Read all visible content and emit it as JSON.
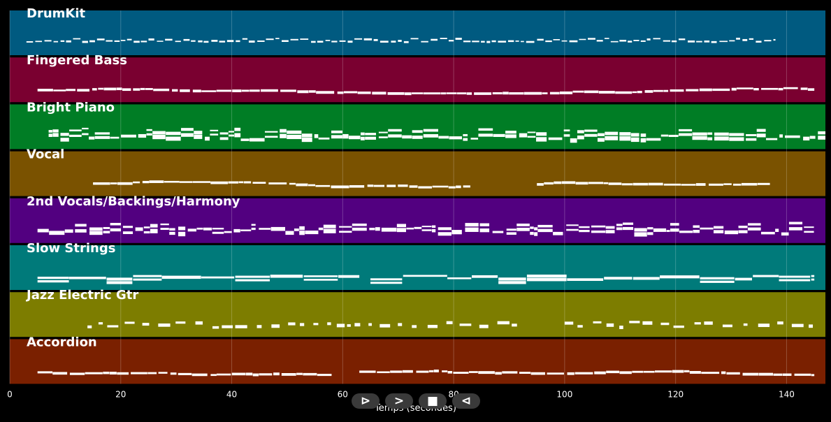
{
  "chart_data": {
    "type": "piano-roll",
    "xlabel": "Temps (secondes)",
    "xlim": [
      0,
      147
    ],
    "x_ticks": [
      0,
      20,
      40,
      60,
      80,
      100,
      120,
      140
    ],
    "grid": true,
    "tracks": [
      {
        "name": "DrumKit",
        "color": "#005a80",
        "active": [
          [
            3,
            138
          ]
        ],
        "style": "drum"
      },
      {
        "name": "Fingered Bass",
        "color": "#7a0030",
        "active": [
          [
            5,
            145
          ]
        ],
        "style": "line"
      },
      {
        "name": "Bright Piano",
        "color": "#007d25",
        "active": [
          [
            7,
            147
          ]
        ],
        "style": "chords"
      },
      {
        "name": "Vocal",
        "color": "#7a5200",
        "active": [
          [
            15,
            83
          ],
          [
            95,
            137
          ]
        ],
        "style": "line"
      },
      {
        "name": "2nd Vocals/Backings/Harmony",
        "color": "#520080",
        "active": [
          [
            5,
            145
          ]
        ],
        "style": "chords"
      },
      {
        "name": "Slow Strings",
        "color": "#007a7a",
        "active": [
          [
            5,
            63
          ],
          [
            65,
            145
          ]
        ],
        "style": "sustain"
      },
      {
        "name": "Jazz Electric Gtr",
        "color": "#7d7d00",
        "active": [
          [
            14,
            93
          ],
          [
            100,
            145
          ]
        ],
        "style": "sparse"
      },
      {
        "name": "Accordion",
        "color": "#7a2000",
        "active": [
          [
            5,
            58
          ],
          [
            63,
            145
          ]
        ],
        "style": "line"
      }
    ]
  },
  "controls": {
    "play_label": "⊳",
    "forward_label": ">",
    "stop_label": "■",
    "back_label": "⊲"
  }
}
